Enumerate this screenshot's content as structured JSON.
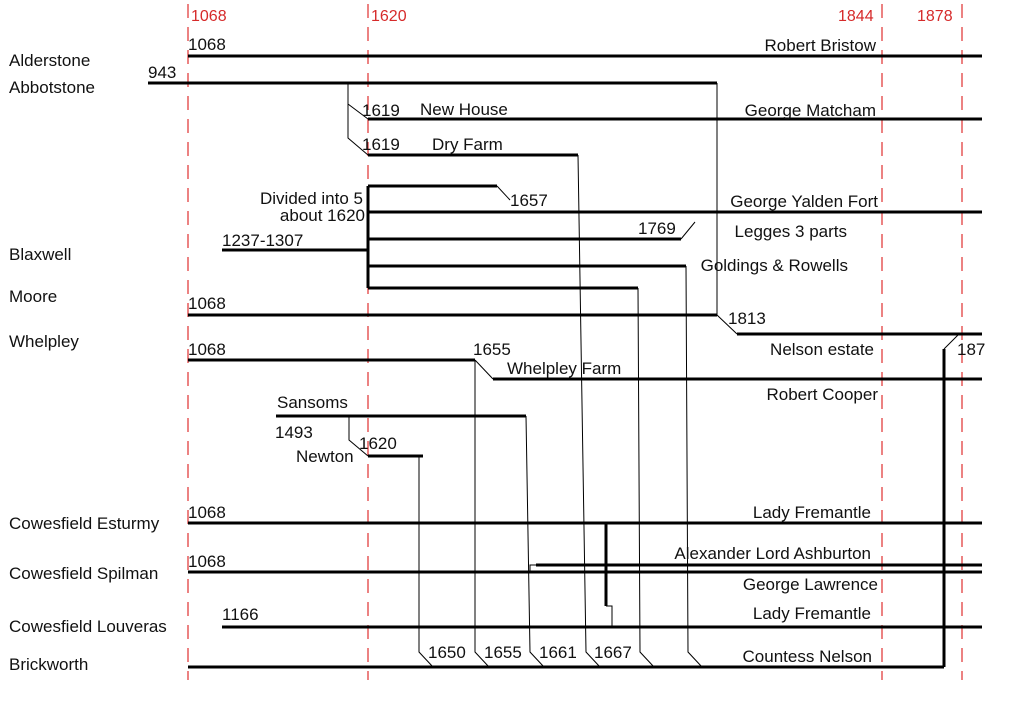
{
  "diagram": {
    "year_markers": [
      "1068",
      "1620",
      "1844",
      "1878"
    ],
    "estates": {
      "alderstone": "Alderstone",
      "abbotstone": "Abbotstone",
      "blaxwell": "Blaxwell",
      "moore": "Moore",
      "whelpley": "Whelpley",
      "cowesfield_esturmy": "Cowesfield Esturmy",
      "cowesfield_spilman": "Cowesfield Spilman",
      "cowesfield_louveras": "Cowesfield Louveras",
      "brickworth": "Brickworth"
    },
    "annotations": {
      "alderstone_start": "1068",
      "abbotstone_start": "943",
      "new_house_year": "1619",
      "new_house": "New House",
      "dry_farm_year": "1619",
      "dry_farm": "Dry Farm",
      "divided_1": "Divided into 5",
      "divided_2": "about 1620",
      "year_1657": "1657",
      "blaxwell_years": "1237-1307",
      "year_1769": "1769",
      "moore_start": "1068",
      "year_1813": "1813",
      "whelpley_start": "1068",
      "year_1655_top": "1655",
      "whelpley_farm": "Whelpley Farm",
      "year_1878_cut": "187",
      "sansoms": "Sansoms",
      "year_1493": "1493",
      "year_1620": "1620",
      "newton": "Newton",
      "esturmy_start": "1068",
      "spilman_start": "1068",
      "louveras_start": "1166",
      "year_1650": "1650",
      "year_1655_bottom": "1655",
      "year_1661": "1661",
      "year_1667": "1667"
    },
    "owners": {
      "robert_bristow": "Robert Bristow",
      "george_matcham": "George Matcham",
      "george_yalden_fort": "George Yalden Fort",
      "legges": "Legges 3 parts",
      "goldings": "Goldings & Rowells",
      "nelson_estate": "Nelson estate",
      "robert_cooper": "Robert Cooper",
      "lady_fremantle_1": "Lady Fremantle",
      "alexander": "Alexander Lord Ashburton",
      "george_lawrence": "George Lawrence",
      "lady_fremantle_2": "Lady Fremantle",
      "countess_nelson": "Countess Nelson"
    }
  }
}
